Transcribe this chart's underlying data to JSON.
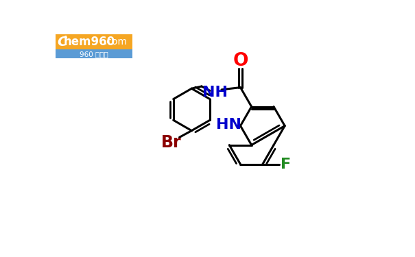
{
  "background_color": "#ffffff",
  "bond_color": "#000000",
  "bond_width": 2.2,
  "O_color": "#ff0000",
  "N_color": "#0000cc",
  "Br_color": "#8b0000",
  "F_color": "#228b22",
  "O_label": "O",
  "NH_label": "NH",
  "HN_label": "HN",
  "Br_label": "Br",
  "F_label": "F",
  "label_fontsize": 16,
  "logo_bg": "#f5a623",
  "logo_blue": "#5b9bd5"
}
